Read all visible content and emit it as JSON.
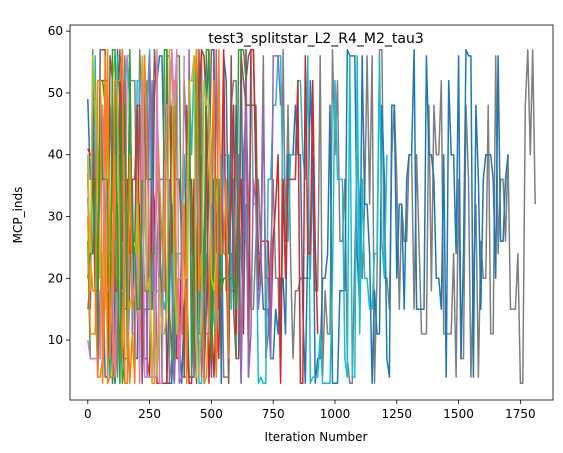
{
  "chart_data": {
    "type": "line",
    "title": "test3_splitstar_L2_R4_M2_tau3",
    "xlabel": "Iteration Number",
    "ylabel": "MCP_inds",
    "xlim": [
      -72,
      1882
    ],
    "ylim": [
      0.3,
      61.0
    ],
    "x_ticks": [
      0,
      250,
      500,
      750,
      1000,
      1250,
      1500,
      1750
    ],
    "y_ticks": [
      10,
      20,
      30,
      40,
      50,
      60
    ],
    "grid": false,
    "legend": "none",
    "levels": [
      3,
      4,
      7,
      11,
      15,
      18,
      20,
      24,
      26,
      32,
      36,
      40,
      48,
      52,
      56,
      57
    ],
    "series": [
      {
        "color": "#7f7f7f",
        "length": 1810,
        "start": 40,
        "end": 32
      },
      {
        "color": "#1f77b4",
        "length": 1700,
        "start": 49,
        "end": 40
      },
      {
        "color": "#17becf",
        "length": 1210,
        "start": 33,
        "end": 40
      },
      {
        "color": "#d62728",
        "length": 930,
        "start": 41,
        "end": 11
      },
      {
        "color": "#9467bd",
        "length": 780,
        "start": 15,
        "end": 48
      },
      {
        "color": "#8c564b",
        "length": 690,
        "start": 37,
        "end": 20
      },
      {
        "color": "#2ca02c",
        "length": 640,
        "start": 26,
        "end": 52
      },
      {
        "color": "#ff7f0e",
        "length": 570,
        "start": 36,
        "end": 7
      },
      {
        "color": "#bcbd22",
        "length": 520,
        "start": 40,
        "end": 24
      },
      {
        "color": "#e377c2",
        "length": 390,
        "start": 10,
        "end": 56
      },
      {
        "color": "#2ca02c",
        "length": 220,
        "start": 20,
        "end": 36
      },
      {
        "color": "#ff7f0e",
        "length": 180,
        "start": 30,
        "end": 15
      }
    ]
  }
}
